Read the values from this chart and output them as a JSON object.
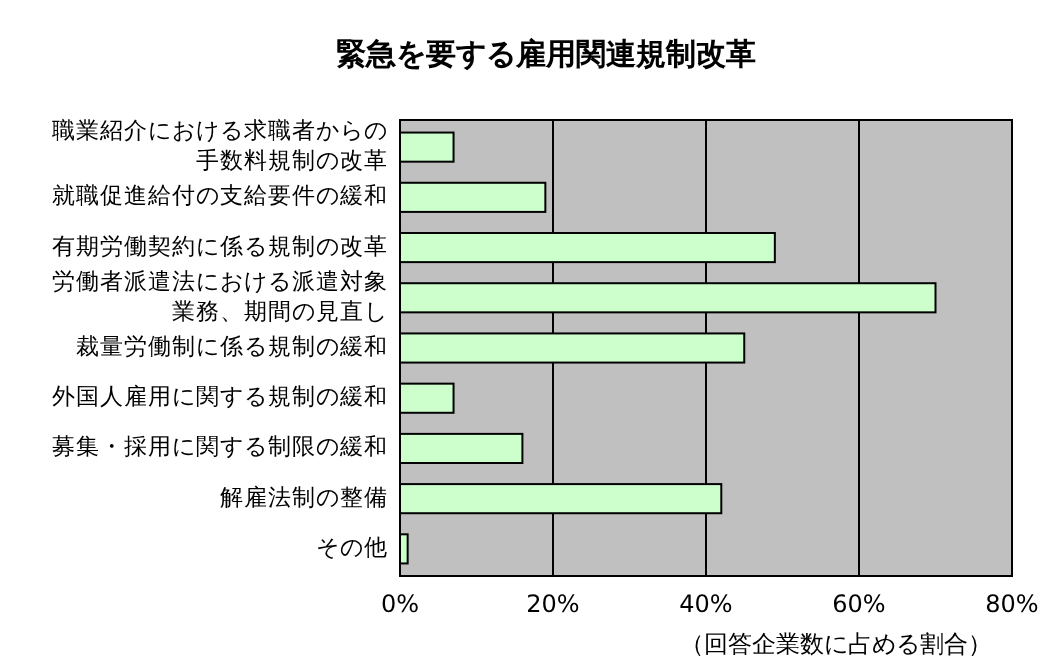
{
  "chart_data": {
    "type": "bar",
    "orientation": "horizontal",
    "title": "緊急を要する雇用関連規制改革",
    "categories": [
      "職業紹介における求職者からの手数料規制の改革",
      "就職促進給付の支給要件の緩和",
      "有期労働契約に係る規制の改革",
      "労働者派遣法における派遣対象業務、期間の見直し",
      "裁量労働制に係る規制の緩和",
      "外国人雇用に関する規制の緩和",
      "募集・採用に関する制限の緩和",
      "解雇法制の整備",
      "その他"
    ],
    "values": [
      7,
      19,
      49,
      70,
      45,
      7,
      16,
      42,
      1
    ],
    "color": "#ccffcc",
    "xlim": [
      0,
      80
    ],
    "xticks": [
      {
        "value": 0,
        "label": "0%"
      },
      {
        "value": 20,
        "label": "20%"
      },
      {
        "value": 40,
        "label": "40%"
      },
      {
        "value": 60,
        "label": "60%"
      },
      {
        "value": 80,
        "label": "80%"
      }
    ],
    "grid": "x",
    "annotations": [
      "（回答企業数に占める割合）"
    ]
  }
}
